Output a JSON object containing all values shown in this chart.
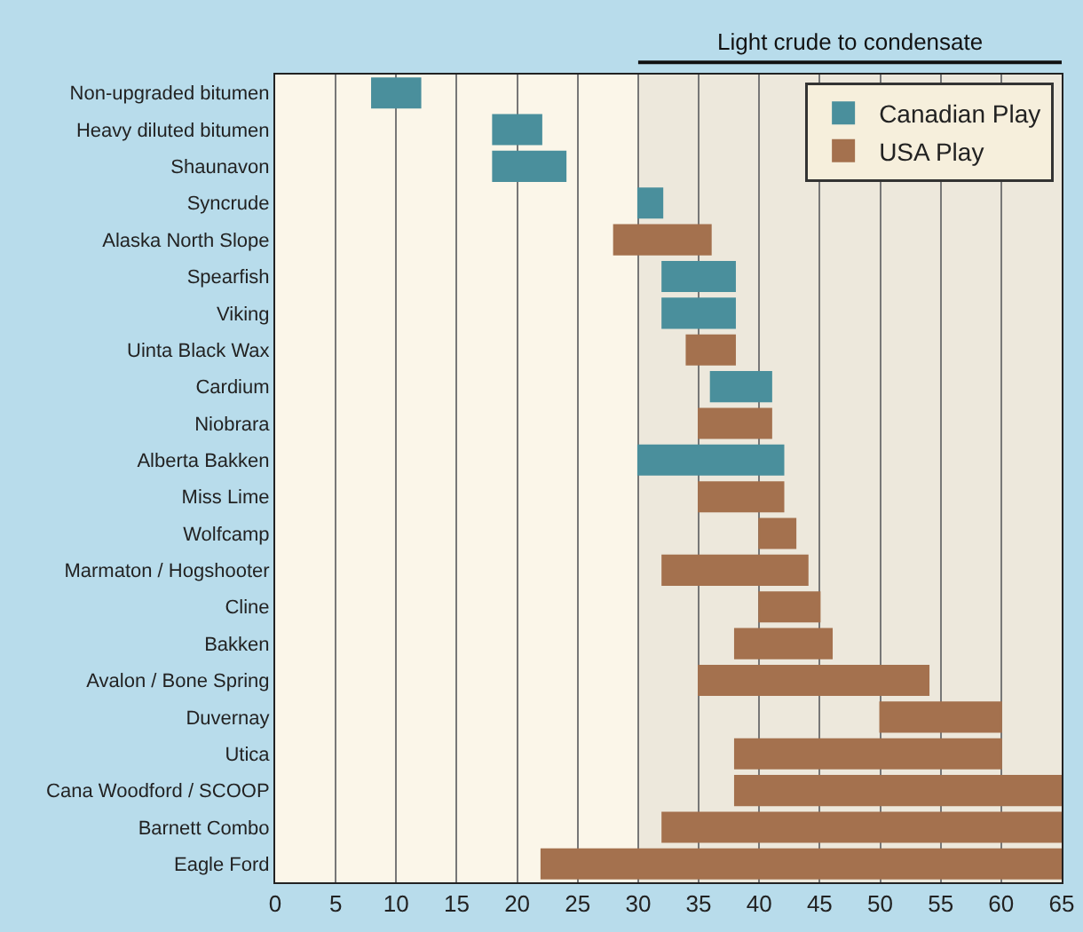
{
  "chart_data": {
    "type": "bar",
    "orientation": "horizontal",
    "categories": [
      "Non-upgraded bitumen",
      "Heavy diluted bitumen",
      "Shaunavon",
      "Syncrude",
      "Alaska North Slope",
      "Spearfish",
      "Viking",
      "Uinta Black Wax",
      "Cardium",
      "Niobrara",
      "Alberta Bakken",
      "Miss Lime",
      "Wolfcamp",
      "Marmaton / Hogshooter",
      "Cline",
      "Bakken",
      "Avalon / Bone Spring",
      "Duvernay",
      "Utica",
      "Cana Woodford / SCOOP",
      "Barnett Combo",
      "Eagle Ford"
    ],
    "series": [
      {
        "name": "Canadian Play",
        "color": "#4a8f9c",
        "base": [
          8,
          18,
          18,
          30,
          null,
          32,
          32,
          null,
          36,
          null,
          30,
          null,
          null,
          null,
          null,
          null,
          null,
          null,
          null,
          null,
          null,
          null
        ],
        "values": [
          4,
          4,
          6,
          2,
          null,
          6,
          6,
          null,
          5,
          null,
          12,
          null,
          null,
          null,
          null,
          null,
          null,
          null,
          null,
          null,
          null,
          null
        ]
      },
      {
        "name": "USA Play",
        "color": "#a4714e",
        "base": [
          null,
          null,
          null,
          null,
          28,
          null,
          null,
          34,
          null,
          35,
          null,
          35,
          40,
          32,
          40,
          38,
          35,
          50,
          38,
          38,
          32,
          22
        ],
        "values": [
          null,
          null,
          null,
          null,
          8,
          null,
          null,
          4,
          null,
          6,
          null,
          7,
          3,
          12,
          5,
          8,
          19,
          10,
          22,
          27,
          33,
          43
        ]
      }
    ],
    "xlim": [
      0,
      65
    ],
    "xticks": [
      0,
      5,
      10,
      15,
      20,
      25,
      30,
      35,
      40,
      45,
      50,
      55,
      60,
      65
    ],
    "bands": [
      {
        "axis": "x",
        "from": 30,
        "to": 65,
        "label": "Light crude to condensate",
        "color": "#ede8dc"
      }
    ],
    "grid": "x",
    "legend": "top right"
  }
}
